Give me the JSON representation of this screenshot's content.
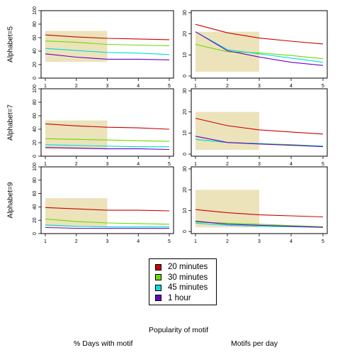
{
  "figure": {
    "caption_center": "Popularity of motif",
    "caption_left": "% Days with motif",
    "caption_right": "Motifs per day"
  },
  "legend": {
    "items": [
      {
        "label": "20 minutes",
        "color": "#cc0000"
      },
      {
        "label": "30 minutes",
        "color": "#66dd00"
      },
      {
        "label": "45 minutes",
        "color": "#00dddd"
      },
      {
        "label": "1 hour",
        "color": "#6600cc"
      }
    ]
  },
  "chart_data": {
    "type": "line",
    "x": [
      1,
      2,
      3,
      4,
      5
    ],
    "x_ticks": [
      "1",
      "2",
      "3",
      "4",
      "5"
    ],
    "highlight_x_range": [
      1,
      3
    ],
    "highlight_color": "#ece3bb",
    "panels": [
      {
        "row": "Alphabet=5",
        "column": "% Days with motif",
        "ylim": [
          0,
          100
        ],
        "yticks": [
          0,
          20,
          40,
          60,
          80,
          100
        ],
        "series": [
          {
            "color": "#cc0000",
            "values": [
              64,
              61,
              59,
              58,
              57
            ]
          },
          {
            "color": "#66dd00",
            "values": [
              55,
              53,
              50,
              49,
              48
            ]
          },
          {
            "color": "#00dddd",
            "values": [
              44,
              41,
              38,
              37,
              35
            ]
          },
          {
            "color": "#6600cc",
            "values": [
              36,
              31,
              28,
              28,
              27
            ]
          }
        ],
        "highlight_y_range": [
          24,
          70
        ]
      },
      {
        "row": "Alphabet=5",
        "column": "Motifs per day",
        "ylim": [
          -1,
          31
        ],
        "yticks": [
          0,
          10,
          20,
          30
        ],
        "series": [
          {
            "color": "#cc0000",
            "values": [
              24.5,
              20.5,
              18.0,
              16.5,
              15.2
            ]
          },
          {
            "color": "#66dd00",
            "values": [
              15.0,
              11.5,
              11.0,
              9.7,
              8.2
            ]
          },
          {
            "color": "#00dddd",
            "values": [
              21.0,
              12.5,
              10.5,
              8.5,
              6.5
            ]
          },
          {
            "color": "#6600cc",
            "values": [
              21.0,
              12.0,
              9.0,
              6.5,
              5.0
            ]
          }
        ],
        "highlight_y_range": [
          2,
          21
        ]
      },
      {
        "row": "Alphabet=7",
        "column": "% Days with motif",
        "ylim": [
          0,
          100
        ],
        "yticks": [
          0,
          20,
          40,
          60,
          80,
          100
        ],
        "series": [
          {
            "color": "#cc0000",
            "values": [
              48,
              45,
              43,
              42,
              40
            ]
          },
          {
            "color": "#66dd00",
            "values": [
              26,
              25,
              24,
              23,
              22
            ]
          },
          {
            "color": "#00dddd",
            "values": [
              17,
              16,
              15,
              14,
              14
            ]
          },
          {
            "color": "#6600cc",
            "values": [
              13,
              12,
              11,
              11,
              10
            ]
          }
        ],
        "highlight_y_range": [
          10,
          53
        ]
      },
      {
        "row": "Alphabet=7",
        "column": "Motifs per day",
        "ylim": [
          -1,
          31
        ],
        "yticks": [
          0,
          10,
          20,
          30
        ],
        "series": [
          {
            "color": "#cc0000",
            "values": [
              17.0,
              13.5,
              11.5,
              10.5,
              9.5
            ]
          },
          {
            "color": "#66dd00",
            "values": [
              7.0,
              5.5,
              5.0,
              4.5,
              3.8
            ]
          },
          {
            "color": "#00dddd",
            "values": [
              7.0,
              5.5,
              5.0,
              4.2,
              3.8
            ]
          },
          {
            "color": "#6600cc",
            "values": [
              8.5,
              5.5,
              4.8,
              4.2,
              3.5
            ]
          }
        ],
        "highlight_y_range": [
          2,
          20
        ]
      },
      {
        "row": "Alphabet=9",
        "column": "% Days with motif",
        "ylim": [
          0,
          100
        ],
        "yticks": [
          0,
          20,
          40,
          60,
          80,
          100
        ],
        "series": [
          {
            "color": "#cc0000",
            "values": [
              39,
              37,
              35,
              35,
              34
            ]
          },
          {
            "color": "#66dd00",
            "values": [
              22,
              18,
              16,
              15,
              14
            ]
          },
          {
            "color": "#00dddd",
            "values": [
              13,
              11,
              10,
              10,
              10
            ]
          },
          {
            "color": "#6600cc",
            "values": [
              9,
              8,
              8,
              8,
              8
            ]
          }
        ],
        "highlight_y_range": [
          10,
          53
        ]
      },
      {
        "row": "Alphabet=9",
        "column": "Motifs per day",
        "ylim": [
          -1,
          31
        ],
        "yticks": [
          0,
          10,
          20,
          30
        ],
        "series": [
          {
            "color": "#cc0000",
            "values": [
              10.5,
              9.0,
              8.0,
              7.5,
              7.0
            ]
          },
          {
            "color": "#66dd00",
            "values": [
              4.5,
              4.0,
              3.5,
              2.8,
              2.3
            ]
          },
          {
            "color": "#00dddd",
            "values": [
              4.0,
              3.0,
              2.5,
              2.3,
              2.0
            ]
          },
          {
            "color": "#6600cc",
            "values": [
              5.0,
              3.5,
              3.0,
              2.5,
              2.0
            ]
          }
        ],
        "highlight_y_range": [
          2,
          20
        ]
      }
    ]
  }
}
